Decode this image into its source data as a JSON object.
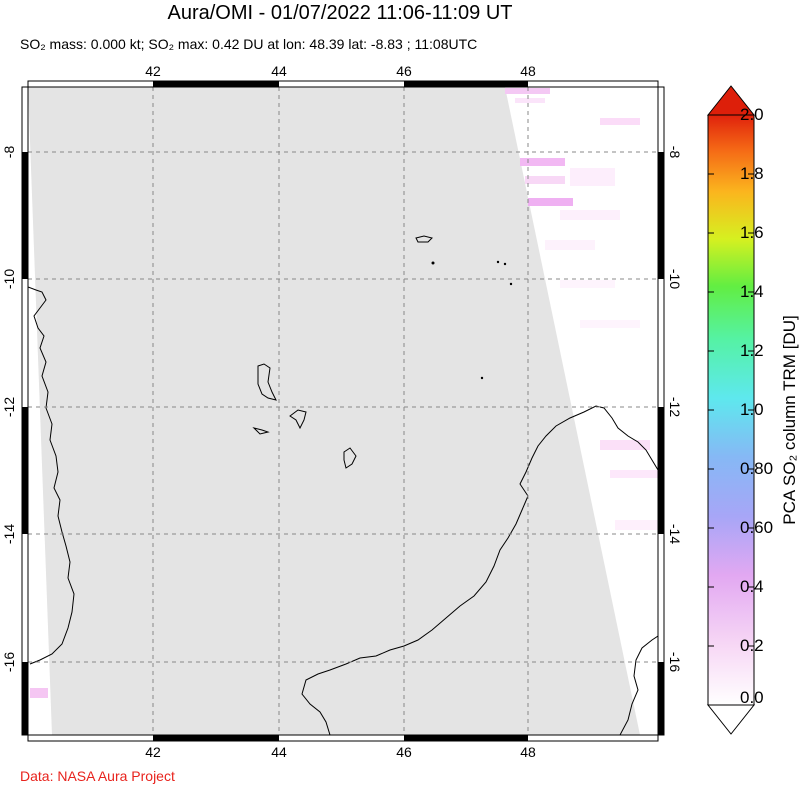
{
  "header": {
    "title": "Aura/OMI - 01/07/2022 11:06-11:09 UT",
    "subtitle": "SO₂ mass: 0.000 kt; SO₂ max: 0.42 DU at lon: 48.39 lat: -8.83 ; 11:08UTC"
  },
  "map": {
    "lon_range": [
      40.0,
      50.0
    ],
    "lat_range": [
      -17.2,
      -7.0
    ],
    "lon_ticks": [
      "42",
      "44",
      "46",
      "48"
    ],
    "lat_ticks": [
      "-8",
      "-10",
      "-12",
      "-14",
      "-16"
    ],
    "no_data_color": "#e4e4e4",
    "grid": "dashed"
  },
  "colorbar": {
    "title": "PCA SO₂ column TRM [DU]",
    "labels": [
      "2.0",
      "1.8",
      "1.6",
      "1.4",
      "1.2",
      "1.0",
      "0.80",
      "0.60",
      "0.4",
      "0.2",
      "0.0"
    ],
    "range": [
      0.0,
      2.0
    ],
    "colors": [
      "#ffffff",
      "#f5c2f2",
      "#b49cf5",
      "#8fb0f5",
      "#5ee8f0",
      "#56f5b0",
      "#5cf04a",
      "#d8f020",
      "#fbb820",
      "#f56015",
      "#d81a0a"
    ]
  },
  "footer": {
    "credit": "Data: NASA Aura Project"
  }
}
